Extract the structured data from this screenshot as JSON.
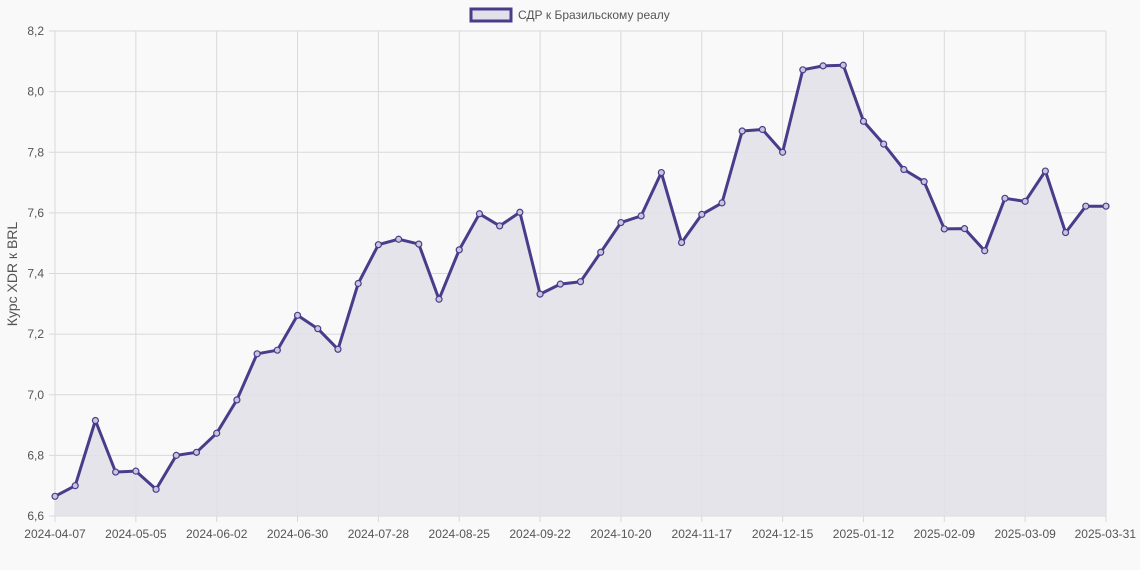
{
  "chart_data": {
    "type": "area",
    "legend": {
      "label": "СДР к Бразильскому реалу",
      "placement": "top-center"
    },
    "ylabel": "Курс XDR к BRL",
    "xlabel": "",
    "ylim": [
      6.6,
      8.2
    ],
    "y_ticks": [
      "6,6",
      "6,8",
      "7,0",
      "7,2",
      "7,4",
      "7,6",
      "7,8",
      "8,0",
      "8,2"
    ],
    "x_tick_labels": [
      "2024-04-07",
      "2024-05-05",
      "2024-06-02",
      "2024-06-30",
      "2024-07-28",
      "2024-08-25",
      "2024-09-22",
      "2024-10-20",
      "2024-11-17",
      "2024-12-15",
      "2025-01-12",
      "2025-02-09",
      "2025-03-09",
      "2025-03-31"
    ],
    "grid": true,
    "colors": {
      "line": "#483d8b",
      "fill": "#e2e0e8",
      "background": "#f9f9f9",
      "grid": "#d9d9d9"
    },
    "values": [
      6.665,
      6.7,
      6.915,
      6.745,
      6.748,
      6.688,
      6.8,
      6.81,
      6.873,
      6.983,
      7.135,
      7.147,
      7.262,
      7.218,
      7.15,
      7.367,
      7.495,
      7.513,
      7.497,
      7.315,
      7.478,
      7.597,
      7.557,
      7.602,
      7.332,
      7.365,
      7.373,
      7.47,
      7.568,
      7.59,
      7.733,
      7.502,
      7.595,
      7.633,
      7.87,
      7.875,
      7.8,
      8.072,
      8.085,
      8.087,
      7.902,
      7.827,
      7.743,
      7.703,
      7.547,
      7.548,
      7.475,
      7.648,
      7.638,
      7.738,
      7.535,
      7.622,
      7.622
    ]
  }
}
